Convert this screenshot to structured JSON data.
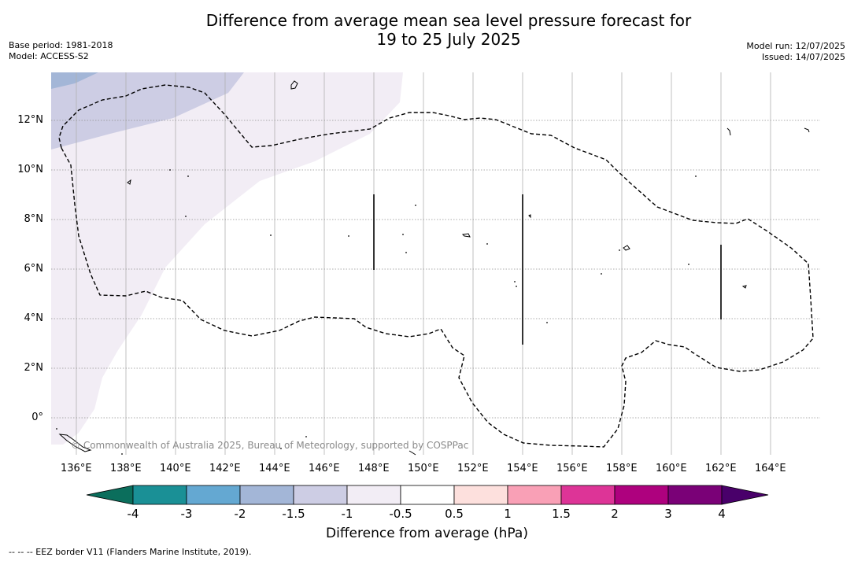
{
  "title": {
    "line1": "Difference from average mean sea level pressure forecast for",
    "line2": "19 to 25 July 2025"
  },
  "meta": {
    "base_period": "Base period: 1981-2018",
    "model": "Model: ACCESS-S2",
    "model_run": "Model run: 12/07/2025",
    "issued": "Issued: 14/07/2025"
  },
  "map": {
    "lon_labels": [
      "136°E",
      "138°E",
      "140°E",
      "142°E",
      "144°E",
      "146°E",
      "148°E",
      "150°E",
      "152°E",
      "154°E",
      "156°E",
      "158°E",
      "160°E",
      "162°E",
      "164°E"
    ],
    "lat_labels": [
      "12°N",
      "10°N",
      "8°N",
      "6°N",
      "4°N",
      "2°N",
      "0°"
    ],
    "copyright": "© Commonwealth of Australia 2025, Bureau of Meteorology, supported by COSPPac"
  },
  "colorbar": {
    "title": "Difference from average (hPa)",
    "tick_labels": [
      "-4",
      "-3",
      "-2",
      "-1.5",
      "-1",
      "-0.5",
      "0.5",
      "1",
      "1.5",
      "2",
      "3",
      "4"
    ],
    "colors": [
      "#1a9096",
      "#64a8d2",
      "#a3b6d7",
      "#cdcde4",
      "#f2edf5",
      "#ffffff",
      "#fde0dd",
      "#f9a0b6",
      "#dd3497",
      "#ae017e",
      "#7a0177"
    ],
    "low_extend_color": "#0b6e5c",
    "high_extend_color": "#49006a"
  },
  "footnote": "--  --  -- EEZ border V11 (Flanders Marine Institute, 2019)."
}
